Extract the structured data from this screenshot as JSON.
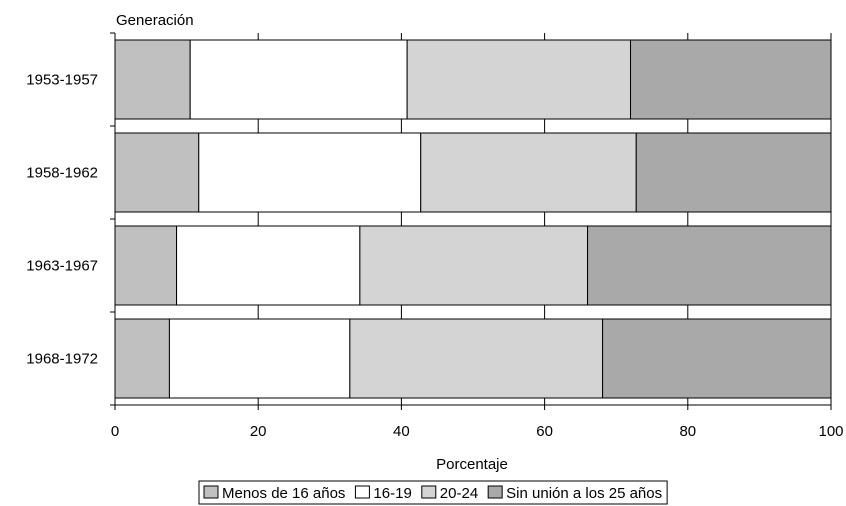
{
  "chart_data": {
    "type": "bar",
    "orientation": "horizontal",
    "stacked": true,
    "title": "",
    "ylabel": "Generación",
    "xlabel": "Porcentaje",
    "xlim": [
      0,
      100
    ],
    "xticks": [
      "0",
      "20",
      "40",
      "60",
      "80",
      "100"
    ],
    "grid": "vertical",
    "legend_position": "bottom",
    "categories": [
      "1953-1957",
      "1958-1962",
      "1963-1967",
      "1968-1972"
    ],
    "series": [
      {
        "name": "Menos de 16 años",
        "color": "#c0c0c0",
        "values": [
          10.5,
          11.7,
          8.6,
          7.6
        ]
      },
      {
        "name": "16-19",
        "color": "#ffffff",
        "values": [
          30.3,
          31.0,
          25.6,
          25.2
        ]
      },
      {
        "name": "20-24",
        "color": "#d4d4d4",
        "values": [
          31.2,
          30.1,
          31.8,
          35.3
        ]
      },
      {
        "name": "Sin unión a los 25 años",
        "color": "#a9a9a9",
        "values": [
          28.0,
          27.2,
          34.0,
          31.9
        ]
      }
    ]
  }
}
